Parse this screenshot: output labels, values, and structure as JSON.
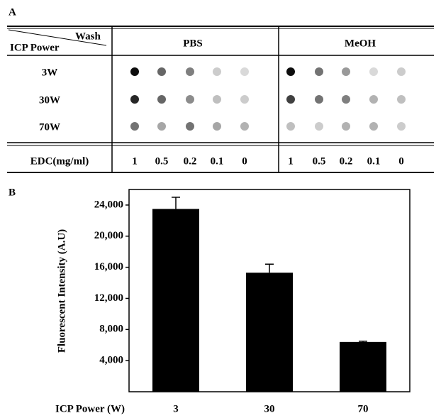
{
  "panel_a": {
    "label": "A",
    "header": {
      "row_label": "ICP Power",
      "column_label": "Wash"
    },
    "columns": [
      "PBS",
      "MeOH"
    ],
    "rows": [
      "3W",
      "30W",
      "70W"
    ],
    "footer": {
      "label": "EDC(mg/ml)",
      "values": [
        1,
        0.5,
        0.2,
        0.1,
        0
      ]
    }
  },
  "chart_data": {
    "type": "bar",
    "panel_label": "B",
    "ylabel": "Fluorescent Intensity (A.U)",
    "xlabel": "ICP Power (W)",
    "categories": [
      "3",
      "30",
      "70"
    ],
    "values": [
      23500,
      15300,
      6400
    ],
    "errors": [
      1500,
      1100,
      100
    ],
    "color": "#000000",
    "ylim": [
      0,
      26000
    ],
    "yticks": [
      {
        "value": 4000,
        "label": "4,000"
      },
      {
        "value": 8000,
        "label": "8,000"
      },
      {
        "value": 12000,
        "label": "12,000"
      },
      {
        "value": 16000,
        "label": "16,000"
      },
      {
        "value": 20000,
        "label": "20,000"
      },
      {
        "value": 24000,
        "label": "24,000"
      }
    ]
  }
}
